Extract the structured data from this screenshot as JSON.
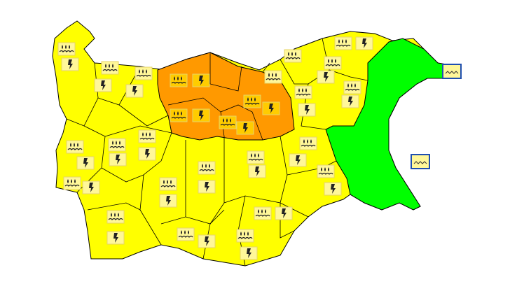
{
  "map": {
    "colors": {
      "yellow_warning": "#ffff00",
      "orange_warning": "#ff9900",
      "green_no_warning": "#00ff00",
      "border": "#000000",
      "icon_bg": "#fff799",
      "icon_bg_orange": "#ffcc00",
      "sea_icon_frame": "#1f4fb0"
    },
    "icons": {
      "flood": "rain-flood-icon",
      "storm": "thunderstorm-icon",
      "sea": "sea-waves-icon"
    },
    "areas": [
      {
        "level": "yellow",
        "warnings": [
          "flood",
          "storm"
        ]
      },
      {
        "level": "orange",
        "warnings": [
          "flood",
          "storm"
        ]
      },
      {
        "level": "green",
        "warnings": []
      },
      {
        "level": "sea",
        "warnings": [
          "sea"
        ]
      }
    ]
  }
}
